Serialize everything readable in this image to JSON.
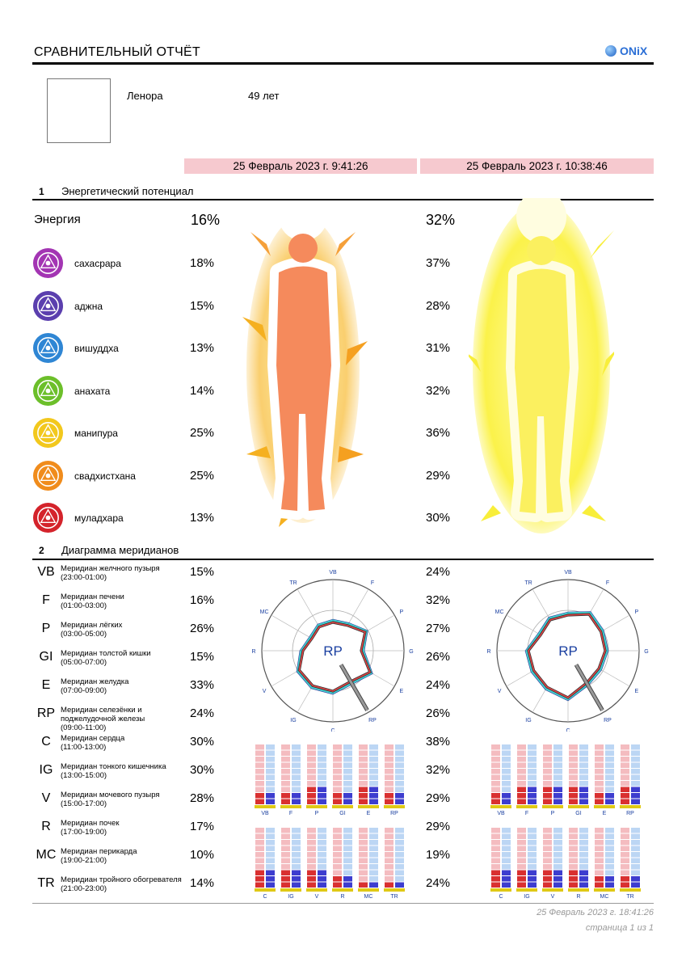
{
  "header": {
    "title": "СРАВНИТЕЛЬНЫЙ ОТЧЁТ",
    "logo_text": "ONiX"
  },
  "person": {
    "name": "Ленора",
    "age": "49 лет"
  },
  "dates": [
    "25 Февраль 2023 г. 9:41:26",
    "25 Февраль 2023 г. 10:38:46"
  ],
  "section1": {
    "num": "1",
    "title": "Энергетический потенциал"
  },
  "energy": {
    "label": "Энергия",
    "values": [
      "16%",
      "32%"
    ]
  },
  "chakras": [
    {
      "name": "сахасрара",
      "v1": "18%",
      "v2": "37%",
      "color": "#a335b3"
    },
    {
      "name": "аджна",
      "v1": "15%",
      "v2": "28%",
      "color": "#5b3fae"
    },
    {
      "name": "вишуддха",
      "v1": "13%",
      "v2": "31%",
      "color": "#2f86d4"
    },
    {
      "name": "анахата",
      "v1": "14%",
      "v2": "32%",
      "color": "#6cbf2a"
    },
    {
      "name": "манипура",
      "v1": "25%",
      "v2": "36%",
      "color": "#f2c81d"
    },
    {
      "name": "свадхистхана",
      "v1": "25%",
      "v2": "29%",
      "color": "#f08c1c"
    },
    {
      "name": "муладхара",
      "v1": "13%",
      "v2": "30%",
      "color": "#d4232b"
    }
  ],
  "section2": {
    "num": "2",
    "title": "Диаграмма меридианов"
  },
  "meridians": [
    {
      "code": "VB",
      "name": "Меридиан желчного пузыря",
      "time": "(23:00-01:00)",
      "v1": "15%",
      "v2": "24%"
    },
    {
      "code": "F",
      "name": "Меридиан печени",
      "time": "(01:00-03:00)",
      "v1": "16%",
      "v2": "32%"
    },
    {
      "code": "P",
      "name": "Меридиан лёгких",
      "time": "(03:00-05:00)",
      "v1": "26%",
      "v2": "27%"
    },
    {
      "code": "GI",
      "name": "Меридиан толстой кишки",
      "time": "(05:00-07:00)",
      "v1": "15%",
      "v2": "26%"
    },
    {
      "code": "E",
      "name": "Меридиан желудка",
      "time": "(07:00-09:00)",
      "v1": "33%",
      "v2": "24%"
    },
    {
      "code": "RP",
      "name": "Меридиан селезёнки и поджелудочной железы",
      "time": "(09:00-11:00)",
      "v1": "24%",
      "v2": "26%"
    },
    {
      "code": "C",
      "name": "Меридиан сердца",
      "time": "(11:00-13:00)",
      "v1": "30%",
      "v2": "38%"
    },
    {
      "code": "IG",
      "name": "Меридиан тонкого кишечника",
      "time": "(13:00-15:00)",
      "v1": "30%",
      "v2": "32%"
    },
    {
      "code": "V",
      "name": "Меридиан мочевого пузыря",
      "time": "(15:00-17:00)",
      "v1": "28%",
      "v2": "29%"
    },
    {
      "code": "R",
      "name": "Меридиан почек",
      "time": "(17:00-19:00)",
      "v1": "17%",
      "v2": "29%"
    },
    {
      "code": "MC",
      "name": "Меридиан перикарда",
      "time": "(19:00-21:00)",
      "v1": "10%",
      "v2": "19%"
    },
    {
      "code": "TR",
      "name": "Меридиан тройного обогревателя",
      "time": "(21:00-23:00)",
      "v1": "14%",
      "v2": "24%"
    }
  ],
  "radar": {
    "center_label": "RP",
    "axes": [
      "VB",
      "F",
      "P",
      "GI",
      "E",
      "RP",
      "C",
      "IG",
      "V",
      "R",
      "MC",
      "TR"
    ],
    "series1": [
      15,
      16,
      26,
      15,
      33,
      24,
      30,
      30,
      28,
      17,
      10,
      14
    ],
    "series2": [
      24,
      32,
      27,
      26,
      24,
      26,
      38,
      32,
      29,
      29,
      19,
      24
    ]
  },
  "bars": {
    "group1": [
      "VB",
      "F",
      "P",
      "GI",
      "E",
      "RP"
    ],
    "group2": [
      "C",
      "IG",
      "V",
      "R",
      "MC",
      "TR"
    ]
  },
  "colors": {
    "datebar": "#f6c9cf",
    "silhouette1": "#f58a5c",
    "aura1": "#f7b21a",
    "silhouette2": "#fbf05f",
    "aura2": "#fbf24a",
    "radar_outline": "#333333",
    "radar_fill": "#22c7c7",
    "radar_red": "#e04444"
  },
  "footer": {
    "date": "25 Февраль 2023 г. 18:41:26",
    "page": "страница 1 из 1"
  }
}
